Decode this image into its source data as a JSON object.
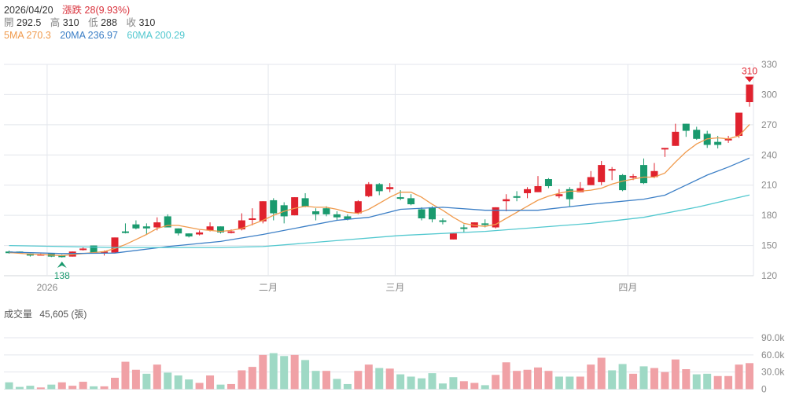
{
  "header": {
    "date": "2026/04/20",
    "change_label": "漲跌",
    "change_value": "28(9.93%)",
    "open_label": "開",
    "open": "292.5",
    "high_label": "高",
    "high": "310",
    "low_label": "低",
    "low": "288",
    "close_label": "收",
    "close": "310",
    "ma5": "5MA 270.3",
    "ma20": "20MA 236.97",
    "ma60": "60MA 200.29"
  },
  "volume_header": {
    "label": "成交量",
    "value": "45,605 (張)"
  },
  "colors": {
    "up": "#e0222e",
    "down": "#1a9a6e",
    "vol_up": "#f0a1a6",
    "vol_down": "#9fd9c5",
    "ma5": "#f09a4c",
    "ma20": "#3c7fc6",
    "ma60": "#52c8cf",
    "grid": "#e3e6ec",
    "axis_text": "#888888"
  },
  "chart_data": [
    {
      "type": "candlestick",
      "title": "",
      "ylim": [
        120,
        330
      ],
      "y_ticks": [
        "330",
        "300",
        "270",
        "240",
        "210",
        "180",
        "150",
        "120"
      ],
      "x_tick_labels": [
        {
          "index": 3.6,
          "label": "2026"
        },
        {
          "index": 24.5,
          "label": "二月"
        },
        {
          "index": 36.5,
          "label": "三月"
        },
        {
          "index": 58.5,
          "label": "四月"
        }
      ],
      "max_marker": {
        "index": 70,
        "value": "310"
      },
      "min_marker": {
        "index": 5,
        "value": "138"
      },
      "ohlc": [
        [
          144,
          145,
          142,
          143
        ],
        [
          144,
          144,
          142,
          142.5
        ],
        [
          142,
          142,
          139,
          140
        ],
        [
          141,
          142,
          140.5,
          141.5
        ],
        [
          142,
          142,
          138.5,
          139
        ],
        [
          140,
          141,
          138,
          139
        ],
        [
          139,
          144,
          139,
          144
        ],
        [
          146,
          148,
          145,
          147
        ],
        [
          150,
          150,
          142,
          142
        ],
        [
          143,
          145,
          140,
          144
        ],
        [
          143,
          158,
          143,
          158
        ],
        [
          164,
          172,
          162,
          163
        ],
        [
          171,
          175,
          166,
          167
        ],
        [
          169,
          172,
          161,
          167
        ],
        [
          168,
          178,
          165,
          173
        ],
        [
          179,
          181,
          168,
          168
        ],
        [
          167,
          167,
          160,
          162
        ],
        [
          162,
          162,
          158,
          159
        ],
        [
          161,
          165,
          160,
          163
        ],
        [
          165,
          173,
          164,
          169
        ],
        [
          169,
          169,
          162,
          163
        ],
        [
          163,
          166,
          162,
          164
        ],
        [
          166,
          182,
          165,
          175
        ],
        [
          176,
          187,
          170,
          177
        ],
        [
          174,
          194,
          172,
          194
        ],
        [
          195,
          197,
          175,
          182
        ],
        [
          190,
          193,
          172,
          179
        ],
        [
          180,
          198,
          180,
          198
        ],
        [
          197,
          202,
          188,
          189
        ],
        [
          184,
          187,
          175,
          181
        ],
        [
          187,
          189,
          179,
          181
        ],
        [
          181,
          184,
          175,
          178
        ],
        [
          179,
          181,
          175,
          176
        ],
        [
          182,
          195,
          181,
          194
        ],
        [
          199,
          213,
          198,
          211
        ],
        [
          211,
          212,
          200,
          204
        ],
        [
          206,
          212,
          203,
          208
        ],
        [
          198,
          205,
          195,
          197
        ],
        [
          197,
          201,
          190,
          191
        ],
        [
          186,
          188,
          175,
          177
        ],
        [
          188,
          189,
          173,
          176
        ],
        [
          175,
          177,
          171,
          174
        ],
        [
          156,
          162,
          156,
          162
        ],
        [
          168,
          171,
          163,
          167
        ],
        [
          168,
          173,
          168,
          173
        ],
        [
          172,
          176,
          168,
          171
        ],
        [
          168,
          188,
          167,
          188
        ],
        [
          194,
          201,
          184,
          196
        ],
        [
          199,
          204,
          194,
          198
        ],
        [
          202,
          208,
          197,
          206
        ],
        [
          203,
          219,
          203,
          209
        ],
        [
          216,
          217,
          207,
          209
        ],
        [
          199,
          206,
          197,
          201
        ],
        [
          206,
          208,
          189,
          196
        ],
        [
          203,
          213,
          203,
          207
        ],
        [
          210,
          224,
          210,
          218
        ],
        [
          213,
          234,
          210,
          230
        ],
        [
          225,
          228,
          215,
          226
        ],
        [
          220,
          221,
          204,
          205
        ],
        [
          218,
          221,
          215,
          219
        ],
        [
          230,
          236.5,
          211,
          212
        ],
        [
          218,
          232,
          217,
          224
        ],
        [
          246,
          247,
          238,
          247
        ],
        [
          249,
          271,
          249,
          263
        ],
        [
          271,
          271,
          258,
          264
        ],
        [
          265,
          268,
          255,
          256
        ],
        [
          261,
          264,
          247,
          250
        ],
        [
          253,
          259,
          246.5,
          250
        ],
        [
          255,
          259,
          252,
          256
        ],
        [
          259,
          282,
          257,
          282
        ],
        [
          292.5,
          310,
          288,
          310
        ]
      ],
      "ma_series": [
        {
          "name": "5MA",
          "color_key": "ma5",
          "points": [
            [
              0,
              143
            ],
            [
              2,
              141.5
            ],
            [
              4,
              140.5
            ],
            [
              5,
              140
            ],
            [
              7,
              142
            ],
            [
              9,
              144
            ],
            [
              10,
              147
            ],
            [
              11,
              151
            ],
            [
              12,
              156
            ],
            [
              13,
              161
            ],
            [
              14,
              167
            ],
            [
              15,
              170
            ],
            [
              16,
              170
            ],
            [
              17,
              168
            ],
            [
              18,
              166
            ],
            [
              19,
              165
            ],
            [
              20,
              164
            ],
            [
              21,
              165
            ],
            [
              22,
              167
            ],
            [
              23,
              171
            ],
            [
              24,
              175
            ],
            [
              25,
              180
            ],
            [
              26,
              184
            ],
            [
              27,
              187
            ],
            [
              28,
              189
            ],
            [
              29,
              188
            ],
            [
              30,
              188
            ],
            [
              31,
              186
            ],
            [
              32,
              183
            ],
            [
              33,
              182
            ],
            [
              34,
              186
            ],
            [
              35,
              192
            ],
            [
              36,
              198
            ],
            [
              37,
              203
            ],
            [
              38,
              203
            ],
            [
              39,
              198
            ],
            [
              40,
              191
            ],
            [
              41,
              185
            ],
            [
              42,
              178
            ],
            [
              43,
              172
            ],
            [
              44,
              170
            ],
            [
              45,
              169
            ],
            [
              46,
              171
            ],
            [
              47,
              177
            ],
            [
              48,
              183
            ],
            [
              49,
              189
            ],
            [
              50,
              195
            ],
            [
              51,
              199
            ],
            [
              52,
              202
            ],
            [
              53,
              204
            ],
            [
              54,
              204
            ],
            [
              55,
              205
            ],
            [
              56,
              207
            ],
            [
              57,
              211
            ],
            [
              58,
              214
            ],
            [
              59,
              216
            ],
            [
              60,
              218
            ],
            [
              61,
              218
            ],
            [
              62,
              222
            ],
            [
              63,
              233
            ],
            [
              64,
              243
            ],
            [
              65,
              251
            ],
            [
              66,
              256
            ],
            [
              67,
              257
            ],
            [
              68,
              256
            ],
            [
              69,
              259
            ],
            [
              70,
              270.3
            ]
          ]
        },
        {
          "name": "20MA",
          "color_key": "ma20",
          "points": [
            [
              0,
              143.5
            ],
            [
              5,
              142
            ],
            [
              10,
              142.5
            ],
            [
              15,
              149
            ],
            [
              20,
              154
            ],
            [
              24,
              161
            ],
            [
              28,
              169
            ],
            [
              31,
              175
            ],
            [
              34,
              178
            ],
            [
              37,
              186
            ],
            [
              41,
              188
            ],
            [
              45,
              185
            ],
            [
              50,
              185
            ],
            [
              55,
              191
            ],
            [
              60,
              196
            ],
            [
              62,
              200
            ],
            [
              64,
              210
            ],
            [
              66,
              220
            ],
            [
              68,
              228
            ],
            [
              70,
              236.97
            ]
          ]
        },
        {
          "name": "60MA",
          "color_key": "ma60",
          "points": [
            [
              0,
              150
            ],
            [
              10,
              148
            ],
            [
              20,
              148
            ],
            [
              24,
              149
            ],
            [
              30,
              154
            ],
            [
              37,
              160
            ],
            [
              45,
              164
            ],
            [
              50,
              168
            ],
            [
              55,
              172
            ],
            [
              60,
              178
            ],
            [
              65,
              188
            ],
            [
              70,
              200.29
            ]
          ]
        }
      ]
    },
    {
      "type": "bar",
      "title": "成交量",
      "ylim": [
        0,
        90000
      ],
      "y_ticks": [
        "90.0k",
        "60.0k",
        "30.0k",
        "0"
      ],
      "values": [
        12000,
        4000,
        6000,
        3000,
        8000,
        12000,
        6000,
        13000,
        5000,
        5000,
        20000,
        48000,
        34000,
        27000,
        43000,
        29000,
        24000,
        17000,
        11000,
        24000,
        8000,
        9000,
        33000,
        39000,
        60000,
        63000,
        58000,
        60000,
        51000,
        32000,
        32000,
        18000,
        9000,
        32000,
        43000,
        37000,
        36000,
        26000,
        22000,
        19000,
        28000,
        10000,
        21000,
        14000,
        11000,
        7000,
        25000,
        47000,
        32000,
        34000,
        38000,
        32000,
        22000,
        22000,
        22000,
        43000,
        55000,
        33000,
        44000,
        27000,
        40000,
        37000,
        30000,
        52000,
        35000,
        26000,
        27000,
        23000,
        23000,
        43000,
        45605
      ],
      "direction": [
        "d",
        "d",
        "d",
        "u",
        "d",
        "u",
        "u",
        "u",
        "d",
        "u",
        "u",
        "u",
        "u",
        "d",
        "u",
        "d",
        "d",
        "d",
        "u",
        "u",
        "d",
        "u",
        "u",
        "u",
        "u",
        "d",
        "d",
        "u",
        "d",
        "d",
        "u",
        "d",
        "d",
        "u",
        "u",
        "d",
        "u",
        "d",
        "d",
        "d",
        "d",
        "d",
        "d",
        "u",
        "u",
        "d",
        "u",
        "u",
        "u",
        "u",
        "u",
        "u",
        "d",
        "d",
        "u",
        "u",
        "u",
        "d",
        "d",
        "u",
        "d",
        "u",
        "u",
        "u",
        "u",
        "d",
        "d",
        "u",
        "u",
        "u",
        "u"
      ]
    }
  ]
}
